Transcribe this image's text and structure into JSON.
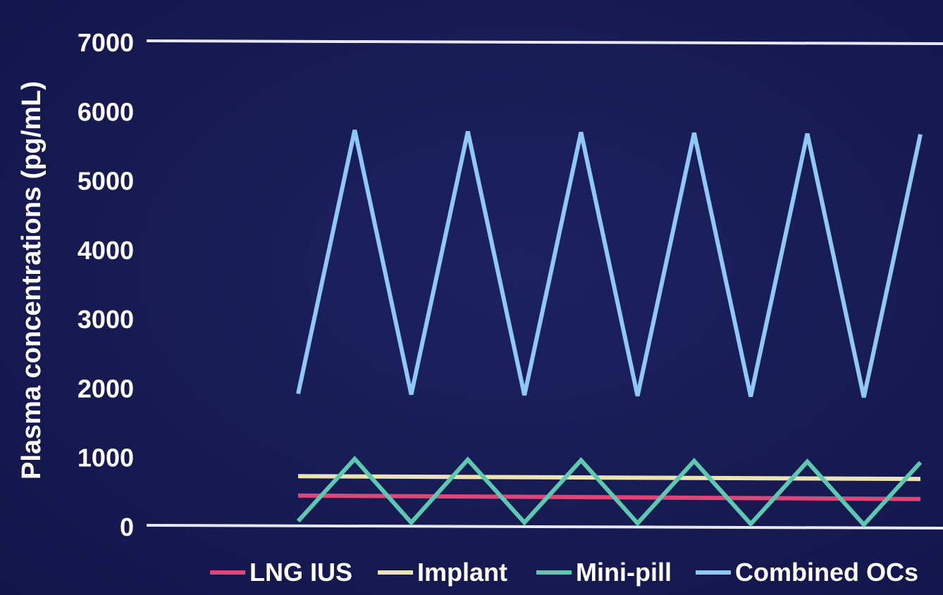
{
  "chart_data": {
    "type": "line",
    "title": "",
    "xlabel": "",
    "ylabel": "Plasma concentrations (pg/mL)",
    "ylim": [
      0,
      7000
    ],
    "y_ticks": [
      "0",
      "1000",
      "2000",
      "3000",
      "4000",
      "5000",
      "6000",
      "7000"
    ],
    "x_ticks": [],
    "grid": false,
    "legend_position": "bottom",
    "series": [
      {
        "name": "LNG IUS",
        "color": "#e0457a",
        "x": [
          0,
          11
        ],
        "y": [
          450,
          400
        ]
      },
      {
        "name": "Implant",
        "color": "#ece4b0",
        "x": [
          0,
          11
        ],
        "y": [
          730,
          690
        ]
      },
      {
        "name": "Mini-pill",
        "color": "#5cc8b0",
        "x": [
          0,
          1,
          2,
          3,
          4,
          5,
          6,
          7,
          8,
          9,
          10,
          11
        ],
        "y": [
          80,
          980,
          60,
          970,
          60,
          960,
          50,
          950,
          40,
          940,
          30,
          930
        ]
      },
      {
        "name": "Combined OCs",
        "color": "#8fc8f2",
        "x": [
          0,
          1,
          2,
          3,
          4,
          5,
          6,
          7,
          8,
          9,
          10,
          11
        ],
        "y": [
          1920,
          5730,
          1910,
          5710,
          1900,
          5700,
          1890,
          5690,
          1880,
          5680,
          1870,
          5670
        ]
      }
    ]
  }
}
